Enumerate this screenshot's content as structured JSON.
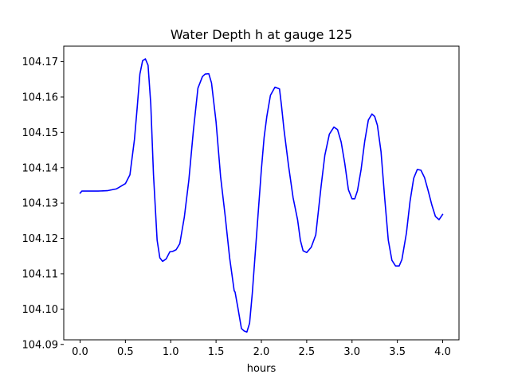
{
  "chart_data": {
    "type": "line",
    "title": "Water Depth h at gauge 125",
    "xlabel": "hours",
    "ylabel": "",
    "xlim": [
      -0.18,
      4.18
    ],
    "ylim": [
      104.0913,
      104.1744
    ],
    "xticks": [
      0.0,
      0.5,
      1.0,
      1.5,
      2.0,
      2.5,
      3.0,
      3.5,
      4.0
    ],
    "xtick_labels": [
      "0.0",
      "0.5",
      "1.0",
      "1.5",
      "2.0",
      "2.5",
      "3.0",
      "3.5",
      "4.0"
    ],
    "yticks": [
      104.09,
      104.1,
      104.11,
      104.12,
      104.13,
      104.14,
      104.15,
      104.16,
      104.17
    ],
    "ytick_labels": [
      "104.09",
      "104.10",
      "104.11",
      "104.12",
      "104.13",
      "104.14",
      "104.15",
      "104.16",
      "104.17"
    ],
    "grid": false,
    "series": [
      {
        "color": "#0000ff",
        "x": [
          0.0,
          0.02,
          0.1,
          0.2,
          0.3,
          0.4,
          0.5,
          0.55,
          0.6,
          0.63,
          0.66,
          0.69,
          0.72,
          0.75,
          0.78,
          0.81,
          0.85,
          0.88,
          0.91,
          0.95,
          0.99,
          1.02,
          1.06,
          1.1,
          1.15,
          1.2,
          1.25,
          1.3,
          1.35,
          1.38,
          1.42,
          1.45,
          1.5,
          1.55,
          1.6,
          1.65,
          1.7,
          1.71,
          1.74,
          1.78,
          1.81,
          1.84,
          1.87,
          1.9,
          1.95,
          2.0,
          2.03,
          2.06,
          2.1,
          2.15,
          2.2,
          2.22,
          2.25,
          2.3,
          2.35,
          2.4,
          2.43,
          2.46,
          2.5,
          2.55,
          2.6,
          2.63,
          2.66,
          2.7,
          2.75,
          2.8,
          2.84,
          2.88,
          2.92,
          2.96,
          3.0,
          3.03,
          3.06,
          3.1,
          3.14,
          3.18,
          3.22,
          3.25,
          3.28,
          3.32,
          3.36,
          3.4,
          3.44,
          3.48,
          3.52,
          3.55,
          3.6,
          3.64,
          3.68,
          3.72,
          3.76,
          3.8,
          3.84,
          3.88,
          3.92,
          3.96,
          4.0
        ],
        "y": [
          104.1328,
          104.1334,
          104.1334,
          104.1334,
          104.1335,
          104.134,
          104.1355,
          104.138,
          104.148,
          104.157,
          104.1665,
          104.1703,
          104.1708,
          104.169,
          104.158,
          104.138,
          104.1195,
          104.1145,
          104.1135,
          104.1142,
          104.1162,
          104.1163,
          104.1168,
          104.1185,
          104.126,
          104.1365,
          104.1505,
          104.1625,
          104.1658,
          104.1665,
          104.1666,
          104.164,
          104.153,
          104.1375,
          104.1265,
          104.1145,
          104.1052,
          104.1048,
          104.1005,
          104.0945,
          104.0938,
          104.0935,
          104.096,
          104.1045,
          104.122,
          104.1395,
          104.1485,
          104.1545,
          104.1605,
          104.1628,
          104.1623,
          104.158,
          104.1507,
          104.1405,
          104.1315,
          104.1252,
          104.1195,
          104.1165,
          104.116,
          104.1175,
          104.121,
          104.128,
          104.135,
          104.1435,
          104.1495,
          104.1515,
          104.1508,
          104.1473,
          104.1412,
          104.1338,
          104.1312,
          104.1312,
          104.1335,
          104.1395,
          104.1475,
          104.1535,
          104.1552,
          104.1545,
          104.152,
          104.1445,
          104.1315,
          104.1195,
          104.1138,
          104.1122,
          104.1122,
          104.114,
          104.1215,
          104.1305,
          104.137,
          104.1395,
          104.1393,
          104.1372,
          104.1335,
          104.1295,
          104.1262,
          104.1253,
          104.1268
        ]
      }
    ]
  }
}
